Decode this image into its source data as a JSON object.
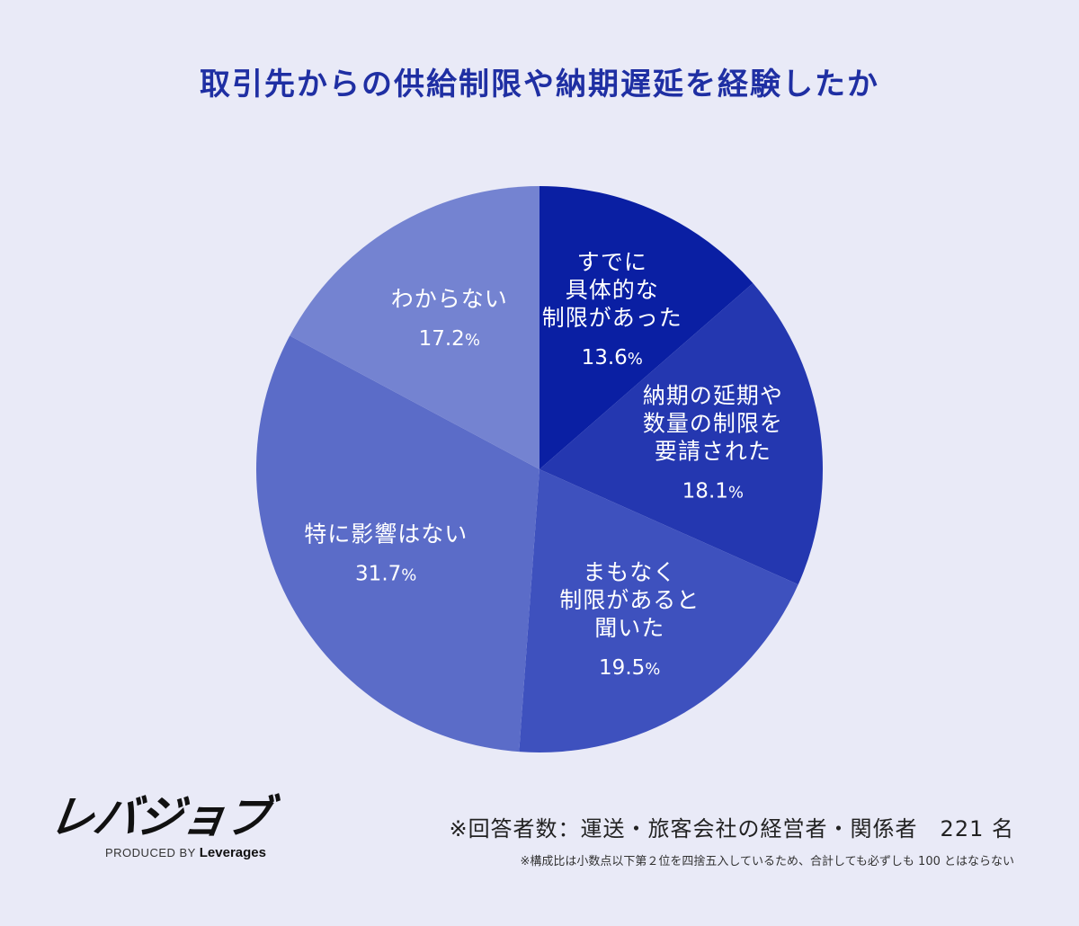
{
  "chart_data": {
    "type": "pie",
    "title": "取引先からの供給制限や納期遅延を経験したか",
    "start_angle_deg": 0,
    "direction": "clockwise",
    "slices": [
      {
        "label_lines": [
          "すでに",
          "具体的な",
          "制限があった"
        ],
        "value": 13.6,
        "value_text": "13.6",
        "unit": "%",
        "color": "#0a1fa3"
      },
      {
        "label_lines": [
          "納期の延期や",
          "数量の制限を",
          "要請された"
        ],
        "value": 18.1,
        "value_text": "18.1",
        "unit": "%",
        "color": "#2437b0"
      },
      {
        "label_lines": [
          "まもなく",
          "制限があると",
          "聞いた"
        ],
        "value": 19.5,
        "value_text": "19.5",
        "unit": "%",
        "color": "#3e51be"
      },
      {
        "label_lines": [
          "特に影響はない"
        ],
        "value": 31.7,
        "value_text": "31.7",
        "unit": "%",
        "color": "#5b6cc8"
      },
      {
        "label_lines": [
          "わからない"
        ],
        "value": 17.2,
        "value_text": "17.2",
        "unit": "%",
        "color": "#7483d1"
      }
    ]
  },
  "brand": {
    "logo_text": "レバジョブ",
    "produced_by": "PRODUCED BY",
    "company": "Leverages"
  },
  "notes": {
    "respondents": "※回答者数：運送・旅客会社の経営者・関係者　221 名",
    "rounding": "※構成比は小数点以下第２位を四捨五入しているため、合計しても必ずしも 100 とはならない"
  }
}
